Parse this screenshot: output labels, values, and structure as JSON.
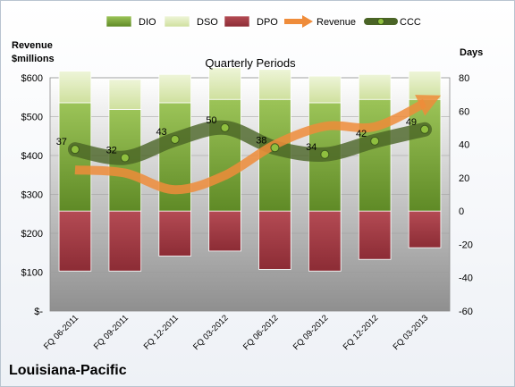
{
  "company": "Louisiana-Pacific",
  "chart_data": {
    "type": "bar",
    "title": "Quarterly Periods",
    "ylabel_left": "Revenue\n$millions",
    "ylabel_right": "Days",
    "categories": [
      "FQ 06-2011",
      "FQ 09-2011",
      "FQ 12-2011",
      "FQ 03-2012",
      "FQ 06-2012",
      "FQ 09-2012",
      "FQ 12-2012",
      "FQ 03-2013"
    ],
    "left_axis": {
      "min": 0,
      "max": 600,
      "ticks": [
        0,
        100,
        200,
        300,
        400,
        500,
        600
      ],
      "tick_labels": [
        "$-",
        "$100",
        "$200",
        "$300",
        "$400",
        "$500",
        "$600"
      ]
    },
    "right_axis": {
      "min": -60,
      "max": 80,
      "ticks": [
        -60,
        -40,
        -20,
        0,
        20,
        40,
        60,
        80
      ]
    },
    "legend": [
      "DIO",
      "DSO",
      "DPO",
      "Revenue",
      "CCC"
    ],
    "legend_position": "top",
    "series": [
      {
        "name": "DIO",
        "kind": "bar",
        "axis": "right",
        "color": "#7aa83a",
        "values": [
          65,
          61,
          65,
          67,
          67,
          65,
          67,
          67
        ]
      },
      {
        "name": "DSO",
        "kind": "bar",
        "axis": "right",
        "color": "#dbe9b8",
        "values": [
          19,
          18,
          17,
          19,
          18,
          16,
          15,
          17
        ]
      },
      {
        "name": "DPO",
        "kind": "bar",
        "axis": "right",
        "color": "#a83c45",
        "values": [
          -36,
          -36,
          -27,
          -24,
          -35,
          -36,
          -29,
          -22
        ]
      },
      {
        "name": "Revenue",
        "kind": "line",
        "axis": "left",
        "color": "#ef8c3a",
        "values": [
          363,
          355,
          312,
          349,
          428,
          475,
          474,
          535
        ]
      },
      {
        "name": "CCC",
        "kind": "line",
        "axis": "right",
        "color": "#5c7a2f",
        "values": [
          37,
          32,
          43,
          50,
          38,
          34,
          42,
          49
        ]
      }
    ],
    "ccc_labels": [
      "37",
      "32",
      "43",
      "50",
      "38",
      "34",
      "42",
      "49"
    ],
    "grid": true
  }
}
